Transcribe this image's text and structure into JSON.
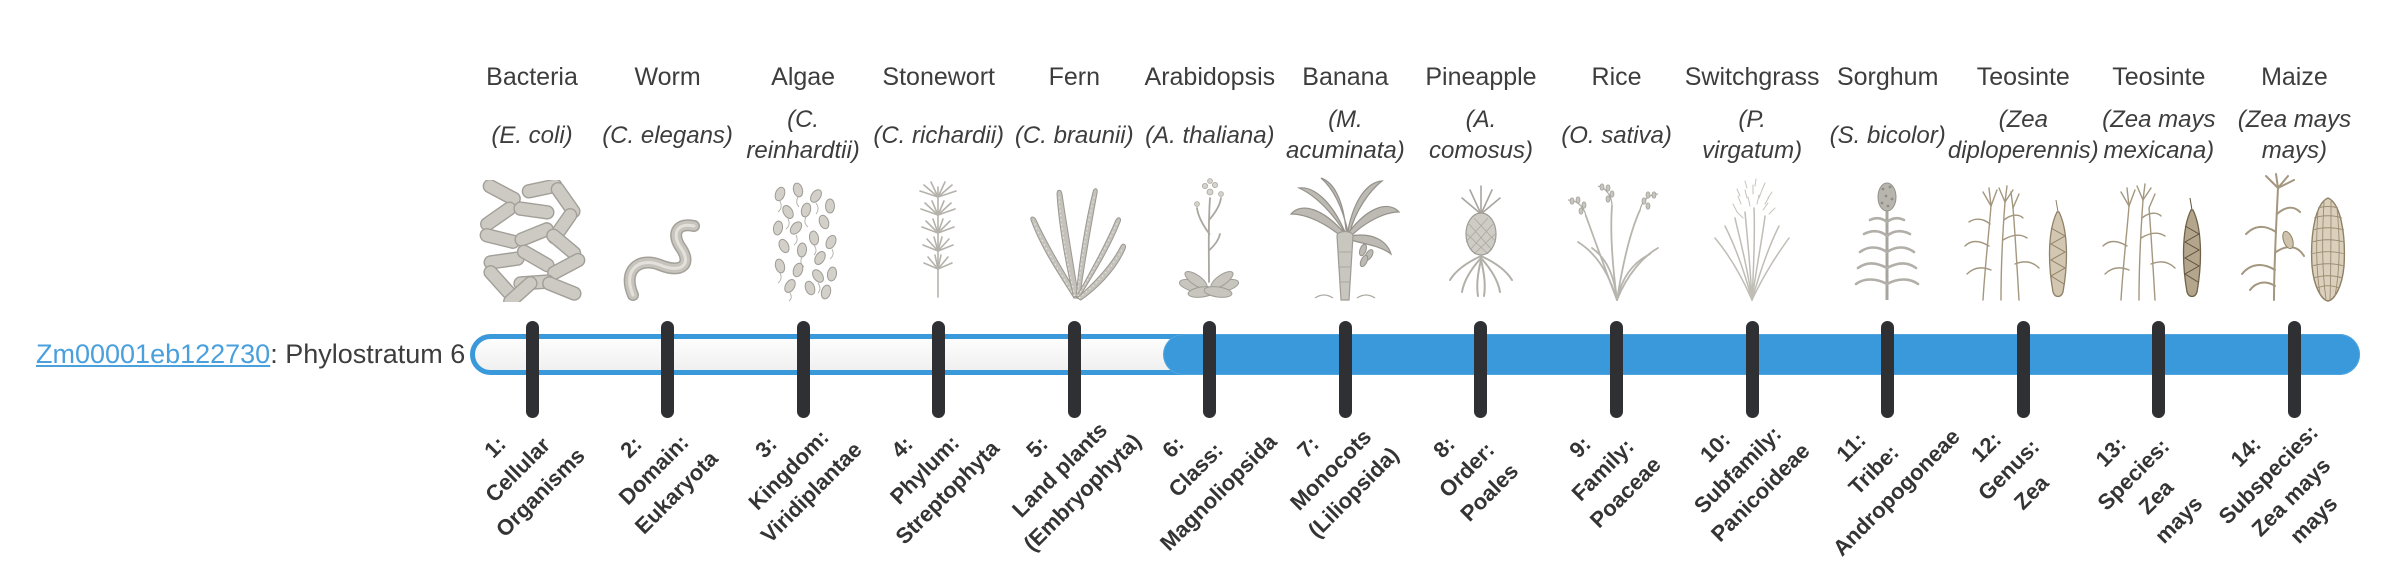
{
  "colors": {
    "bar_blue": "#3a99db",
    "track_fill": "#f5f5f5",
    "tick_dark": "#2e3033",
    "link_blue": "#4aa0dd",
    "text_dark": "#3d3d3d"
  },
  "chart_data": {
    "type": "bar",
    "subtype": "phylostratum-timeline",
    "gene": {
      "id": "Zm00001eb122730",
      "suffix": ": Phylostratum 6",
      "phylostratum": 6
    },
    "filled_strata_range": [
      6,
      14
    ],
    "legend_position": "none",
    "strata": [
      {
        "rank": 1,
        "organism": "Bacteria",
        "species_lines": [
          "(E. coli)"
        ],
        "rank_label_lines": [
          "1:",
          "Cellular",
          "Organisms"
        ],
        "icon": "bacteria-icon",
        "filled": false
      },
      {
        "rank": 2,
        "organism": "Worm",
        "species_lines": [
          "(C. elegans)"
        ],
        "rank_label_lines": [
          "2:",
          "Domain:",
          "Eukaryota"
        ],
        "icon": "worm-icon",
        "filled": false
      },
      {
        "rank": 3,
        "organism": "Algae",
        "species_lines": [
          "(C.",
          "reinhardtii)"
        ],
        "rank_label_lines": [
          "3:",
          "Kingdom:",
          "Viridiplantae"
        ],
        "icon": "algae-icon",
        "filled": false
      },
      {
        "rank": 4,
        "organism": "Stonewort",
        "species_lines": [
          "(C. richardii)"
        ],
        "rank_label_lines": [
          "4:",
          "Phylum:",
          "Streptophyta"
        ],
        "icon": "stonewort-icon",
        "filled": false
      },
      {
        "rank": 5,
        "organism": "Fern",
        "species_lines": [
          "(C. braunii)"
        ],
        "rank_label_lines": [
          "5:",
          "Land plants",
          "(Embryophyta)"
        ],
        "icon": "fern-icon",
        "filled": false
      },
      {
        "rank": 6,
        "organism": "Arabidopsis",
        "species_lines": [
          "(A. thaliana)"
        ],
        "rank_label_lines": [
          "6:",
          "Class:",
          "Magnoliopsida"
        ],
        "icon": "arabidopsis-icon",
        "filled": true
      },
      {
        "rank": 7,
        "organism": "Banana",
        "species_lines": [
          "(M.",
          "acuminata)"
        ],
        "rank_label_lines": [
          "7:",
          "Monocots",
          "(Liliopsida)"
        ],
        "icon": "banana-icon",
        "filled": true
      },
      {
        "rank": 8,
        "organism": "Pineapple",
        "species_lines": [
          "(A.",
          "comosus)"
        ],
        "rank_label_lines": [
          "8:",
          "Order:",
          "Poales"
        ],
        "icon": "pineapple-icon",
        "filled": true
      },
      {
        "rank": 9,
        "organism": "Rice",
        "species_lines": [
          "(O. sativa)"
        ],
        "rank_label_lines": [
          "9:",
          "Family:",
          "Poaceae"
        ],
        "icon": "rice-icon",
        "filled": true
      },
      {
        "rank": 10,
        "organism": "Switchgrass",
        "species_lines": [
          "(P.",
          "virgatum)"
        ],
        "rank_label_lines": [
          "10:",
          "Subfamily:",
          "Panicoideae"
        ],
        "icon": "switchgrass-icon",
        "filled": true
      },
      {
        "rank": 11,
        "organism": "Sorghum",
        "species_lines": [
          "(S. bicolor)"
        ],
        "rank_label_lines": [
          "11:",
          "Tribe:",
          "Andropogoneae"
        ],
        "icon": "sorghum-icon",
        "filled": true
      },
      {
        "rank": 12,
        "organism": "Teosinte",
        "species_lines": [
          "(Zea",
          "diploperennis)"
        ],
        "rank_label_lines": [
          "12:",
          "Genus:",
          "Zea"
        ],
        "icon": "teosinte-diploperennis-icon",
        "filled": true
      },
      {
        "rank": 13,
        "organism": "Teosinte",
        "species_lines": [
          "(Zea mays",
          "mexicana)"
        ],
        "rank_label_lines": [
          "13:",
          "Species:",
          "Zea",
          "mays"
        ],
        "icon": "teosinte-mexicana-icon",
        "filled": true
      },
      {
        "rank": 14,
        "organism": "Maize",
        "species_lines": [
          "(Zea mays",
          "mays)"
        ],
        "rank_label_lines": [
          "14:",
          "Subspecies:",
          "Zea mays",
          "mays"
        ],
        "icon": "maize-icon",
        "filled": true
      }
    ]
  }
}
